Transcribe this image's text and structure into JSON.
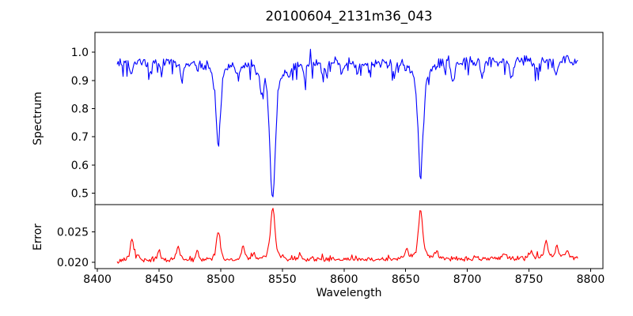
{
  "figure": {
    "title": "20100604_2131m36_043",
    "xlabel": "Wavelength",
    "background_color": "#ffffff",
    "frame_color": "#000000",
    "text_color": "#000000"
  },
  "chart_data": [
    {
      "type": "line",
      "name": "spectrum",
      "ylabel": "Spectrum",
      "line_color": "#0000ff",
      "xlim": [
        8398,
        8810
      ],
      "ylim": [
        0.46,
        1.07
      ],
      "grid": false,
      "legend": null,
      "yticks": [
        {
          "value": 0.5,
          "label": "0.5"
        },
        {
          "value": 0.6,
          "label": "0.6"
        },
        {
          "value": 0.7,
          "label": "0.7"
        },
        {
          "value": 0.8,
          "label": "0.8"
        },
        {
          "value": 0.9,
          "label": "0.9"
        },
        {
          "value": 1.0,
          "label": "1.0"
        }
      ],
      "show_xtick_labels": false,
      "x_start": 8416,
      "x_end": 8790,
      "x_step": 0.8,
      "baseline": 0.97,
      "slope_total": 0.0,
      "noise_amplitude": 0.012,
      "spike_down": {
        "p": 0.1,
        "max": 0.05
      },
      "spike_up": {
        "p": 0.06,
        "max": 0.035
      },
      "features": [
        {
          "center": 8498.0,
          "amplitude": -0.31,
          "width": 1.6,
          "wing": 4.5
        },
        {
          "center": 8542.1,
          "amplitude": -0.48,
          "width": 2.0,
          "wing": 6.0
        },
        {
          "center": 8662.1,
          "amplitude": -0.41,
          "width": 1.8,
          "wing": 5.0
        },
        {
          "center": 8427.5,
          "amplitude": -0.05,
          "width": 1.0,
          "wing": 2.5
        },
        {
          "center": 8442.0,
          "amplitude": -0.06,
          "width": 1.0,
          "wing": 2.5
        },
        {
          "center": 8452.0,
          "amplitude": -0.04,
          "width": 0.9,
          "wing": 2.2
        },
        {
          "center": 8468.5,
          "amplitude": -0.07,
          "width": 1.1,
          "wing": 2.5
        },
        {
          "center": 8481.0,
          "amplitude": -0.04,
          "width": 0.9,
          "wing": 2.2
        },
        {
          "center": 8514.0,
          "amplitude": -0.05,
          "width": 1.0,
          "wing": 2.4
        },
        {
          "center": 8533.0,
          "amplitude": -0.08,
          "width": 1.1,
          "wing": 2.6
        },
        {
          "center": 8556.0,
          "amplitude": -0.04,
          "width": 0.9,
          "wing": 2.2
        },
        {
          "center": 8568.0,
          "amplitude": -0.06,
          "width": 1.0,
          "wing": 2.4
        },
        {
          "center": 8583.0,
          "amplitude": -0.05,
          "width": 1.0,
          "wing": 2.4
        },
        {
          "center": 8598.0,
          "amplitude": -0.05,
          "width": 1.0,
          "wing": 2.4
        },
        {
          "center": 8611.0,
          "amplitude": -0.04,
          "width": 0.9,
          "wing": 2.2
        },
        {
          "center": 8621.5,
          "amplitude": -0.05,
          "width": 1.0,
          "wing": 2.4
        },
        {
          "center": 8641.0,
          "amplitude": -0.06,
          "width": 1.0,
          "wing": 2.4
        },
        {
          "center": 8688.5,
          "amplitude": -0.08,
          "width": 1.2,
          "wing": 2.8
        },
        {
          "center": 8712.0,
          "amplitude": -0.06,
          "width": 1.0,
          "wing": 2.5
        },
        {
          "center": 8736.0,
          "amplitude": -0.05,
          "width": 1.0,
          "wing": 2.4
        },
        {
          "center": 8757.0,
          "amplitude": -0.04,
          "width": 0.9,
          "wing": 2.2
        },
        {
          "center": 8772.0,
          "amplitude": -0.05,
          "width": 1.0,
          "wing": 2.4
        }
      ],
      "seed": 77
    },
    {
      "type": "line",
      "name": "error",
      "ylabel": "Error",
      "line_color": "#ff0000",
      "xlim": [
        8398,
        8810
      ],
      "ylim": [
        0.019,
        0.0294
      ],
      "grid": false,
      "legend": null,
      "yticks": [
        {
          "value": 0.02,
          "label": "0.020"
        },
        {
          "value": 0.025,
          "label": "0.025"
        }
      ],
      "xticks": [
        {
          "value": 8400,
          "label": "8400"
        },
        {
          "value": 8450,
          "label": "8450"
        },
        {
          "value": 8500,
          "label": "8500"
        },
        {
          "value": 8550,
          "label": "8550"
        },
        {
          "value": 8600,
          "label": "8600"
        },
        {
          "value": 8650,
          "label": "8650"
        },
        {
          "value": 8700,
          "label": "8700"
        },
        {
          "value": 8750,
          "label": "8750"
        },
        {
          "value": 8800,
          "label": "8800"
        }
      ],
      "show_xtick_labels": true,
      "x_start": 8416,
      "x_end": 8790,
      "x_step": 0.8,
      "baseline": 0.0202,
      "slope_total": 0.0005,
      "noise_amplitude": 0.00025,
      "spike_down": {
        "p": 0.0,
        "max": 0
      },
      "spike_up": {
        "p": 0.07,
        "max": 0.0008
      },
      "features": [
        {
          "center": 8428.0,
          "amplitude": 0.0036,
          "width": 1.2,
          "wing": 2.5
        },
        {
          "center": 8433.0,
          "amplitude": 0.001,
          "width": 0.8,
          "wing": 1.8
        },
        {
          "center": 8450.0,
          "amplitude": 0.0016,
          "width": 1.2,
          "wing": 2.5
        },
        {
          "center": 8465.5,
          "amplitude": 0.0022,
          "width": 1.2,
          "wing": 2.5
        },
        {
          "center": 8481.0,
          "amplitude": 0.0016,
          "width": 1.0,
          "wing": 2.2
        },
        {
          "center": 8498.0,
          "amplitude": 0.0046,
          "width": 1.4,
          "wing": 3.0
        },
        {
          "center": 8518.0,
          "amplitude": 0.0022,
          "width": 1.2,
          "wing": 2.5
        },
        {
          "center": 8527.0,
          "amplitude": 0.0013,
          "width": 1.0,
          "wing": 2.0
        },
        {
          "center": 8542.1,
          "amplitude": 0.0086,
          "width": 1.6,
          "wing": 4.0
        },
        {
          "center": 8564.0,
          "amplitude": 0.001,
          "width": 1.0,
          "wing": 2.0
        },
        {
          "center": 8651.0,
          "amplitude": 0.0015,
          "width": 1.0,
          "wing": 2.2
        },
        {
          "center": 8662.1,
          "amplitude": 0.0078,
          "width": 1.5,
          "wing": 3.5
        },
        {
          "center": 8675.0,
          "amplitude": 0.0012,
          "width": 1.0,
          "wing": 2.0
        },
        {
          "center": 8730.0,
          "amplitude": 0.0008,
          "width": 1.2,
          "wing": 2.2
        },
        {
          "center": 8752.0,
          "amplitude": 0.001,
          "width": 1.0,
          "wing": 2.0
        },
        {
          "center": 8764.0,
          "amplitude": 0.0026,
          "width": 1.2,
          "wing": 2.4
        },
        {
          "center": 8772.5,
          "amplitude": 0.002,
          "width": 1.1,
          "wing": 2.2
        },
        {
          "center": 8781.0,
          "amplitude": 0.0012,
          "width": 1.0,
          "wing": 2.0
        }
      ],
      "seed": 1234
    }
  ]
}
